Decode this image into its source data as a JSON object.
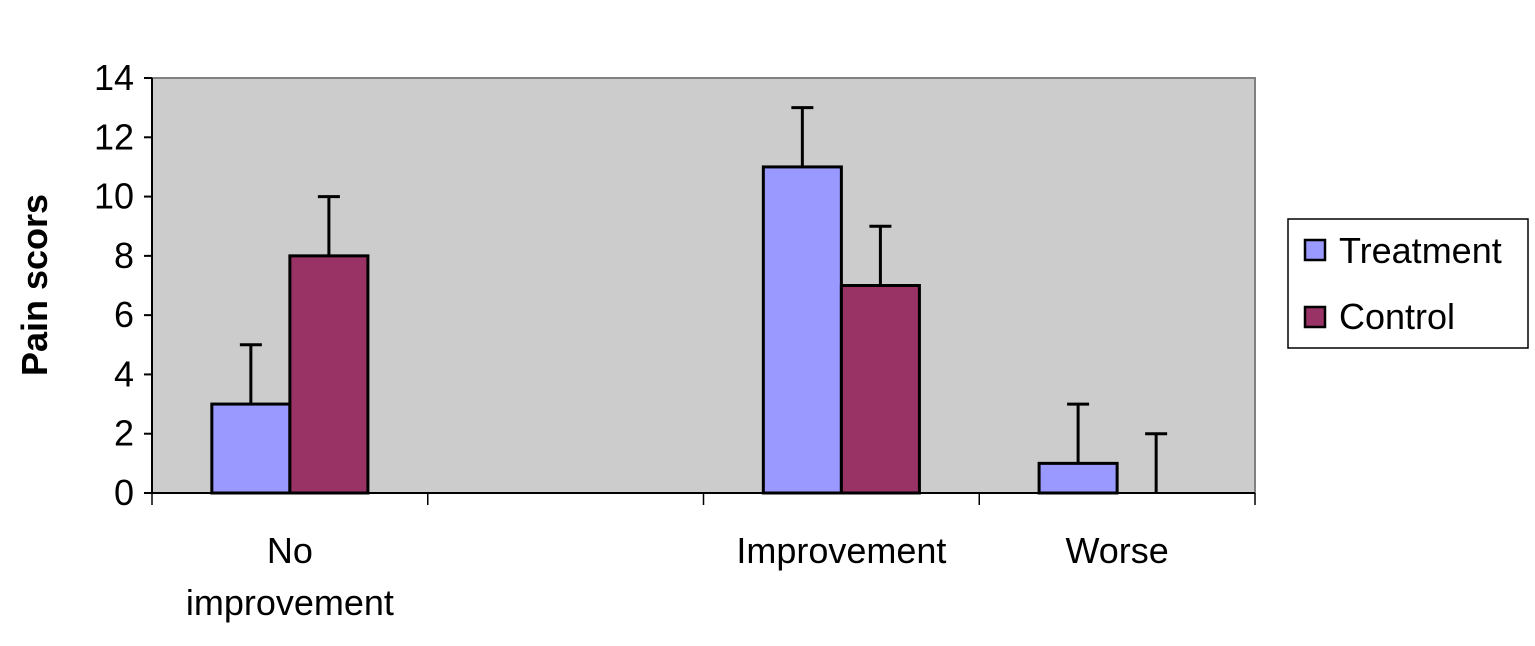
{
  "chart_data": {
    "type": "bar",
    "title": "",
    "xlabel": "",
    "ylabel": "Pain scors",
    "ylim": [
      0,
      14
    ],
    "yticks": [
      0,
      2,
      4,
      6,
      8,
      10,
      12,
      14
    ],
    "grid": false,
    "legend_position": "right",
    "categories": [
      [
        "No",
        "improvement"
      ],
      [
        "Improvement"
      ],
      [
        "Worse"
      ]
    ],
    "category_slots": [
      0,
      2,
      3
    ],
    "slot_count": 4,
    "series": [
      {
        "name": "Treatment",
        "color": "#9999ff",
        "values": [
          3,
          11,
          1
        ],
        "error_upper": [
          2,
          2,
          2
        ]
      },
      {
        "name": "Control",
        "color": "#993366",
        "values": [
          8,
          7,
          0
        ],
        "error_upper": [
          2,
          2,
          2
        ]
      }
    ],
    "plot_background": "#cccccc"
  }
}
